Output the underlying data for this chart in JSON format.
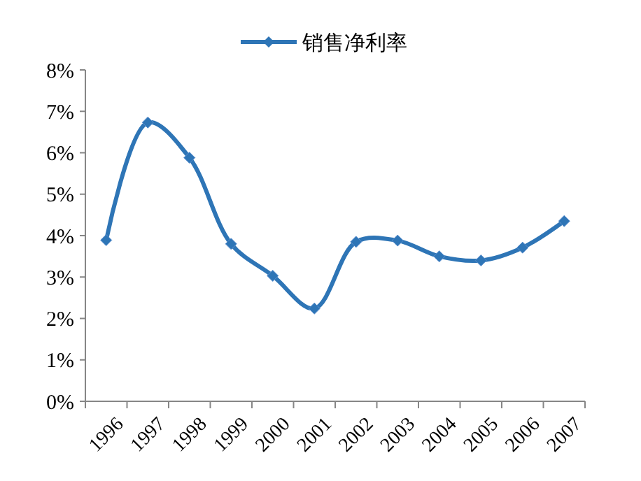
{
  "chart_data": {
    "type": "line",
    "categories": [
      "1996",
      "1997",
      "1998",
      "1999",
      "2000",
      "2001",
      "2002",
      "2003",
      "2004",
      "2005",
      "2006",
      "2007"
    ],
    "series": [
      {
        "name": "销售净利率",
        "color": "#2e75b6",
        "values": [
          3.89,
          6.73,
          5.88,
          3.8,
          3.03,
          2.24,
          3.85,
          3.88,
          3.5,
          3.4,
          3.71,
          4.35
        ]
      }
    ],
    "ylim": [
      0,
      8
    ],
    "yticks": [
      {
        "value": 0,
        "label": "0%"
      },
      {
        "value": 1,
        "label": "1%"
      },
      {
        "value": 2,
        "label": "2%"
      },
      {
        "value": 3,
        "label": "3%"
      },
      {
        "value": 4,
        "label": "4%"
      },
      {
        "value": 5,
        "label": "5%"
      },
      {
        "value": 6,
        "label": "6%"
      },
      {
        "value": 7,
        "label": "7%"
      },
      {
        "value": 8,
        "label": "8%"
      }
    ],
    "grid": false,
    "legend": "top",
    "marker": "diamond",
    "line_style": "solid"
  }
}
